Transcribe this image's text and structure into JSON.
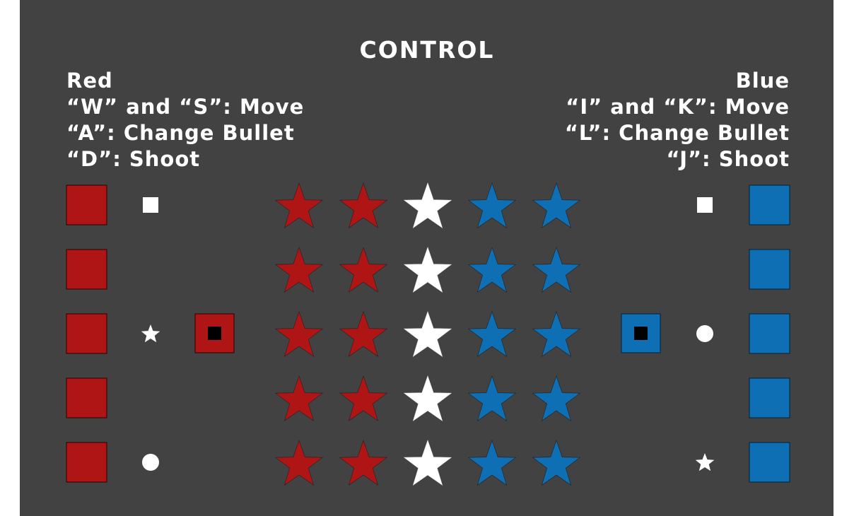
{
  "title": "CONTROL",
  "red": {
    "label": "Red",
    "move": "“W” and “S”: Move",
    "change": "“A”: Change Bullet",
    "shoot": "“D”: Shoot",
    "color": "#b01515"
  },
  "blue": {
    "label": "Blue",
    "move": "“I” and “K”: Move",
    "change": "“L”: Change Bullet",
    "shoot": "“J”: Shoot",
    "color": "#0f6fb4"
  },
  "colors": {
    "background": "#424242",
    "neutral": "#ffffff",
    "selected_marker": "#000000"
  },
  "board": {
    "lanes": 5,
    "center_star_colors": [
      "red",
      "red",
      "white",
      "blue",
      "blue"
    ],
    "red_bullet_column": [
      "square",
      null,
      "star",
      null,
      "circle"
    ],
    "blue_bullet_column": [
      "square",
      null,
      "circle",
      null,
      "star"
    ],
    "red_active_lane": 3,
    "blue_active_lane": 3
  }
}
